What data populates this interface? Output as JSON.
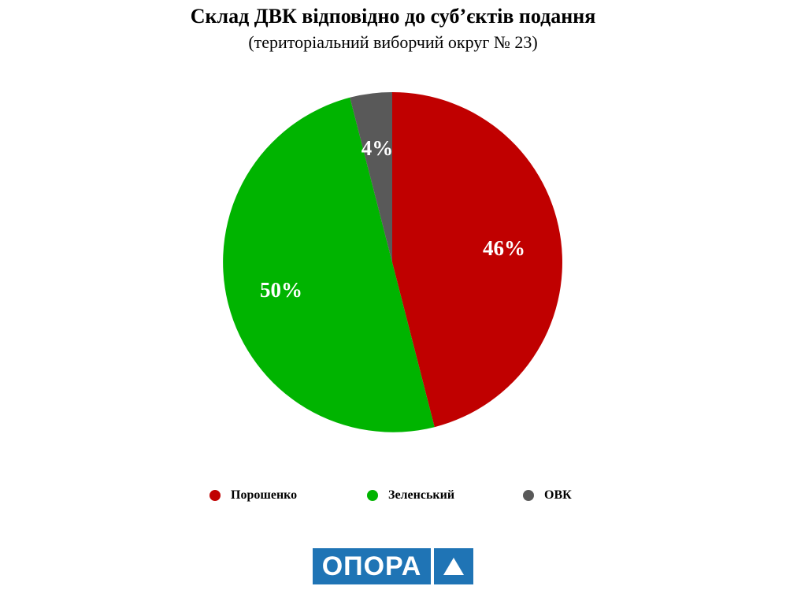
{
  "chart_data": {
    "type": "pie",
    "title": "Склад ДВК відповідно до суб’єктів подання",
    "subtitle": "(територіальний виборчий округ № 23)",
    "slices": [
      {
        "name": "Порошенко",
        "value": 46,
        "label": "46%",
        "color": "#c00000"
      },
      {
        "name": "Зеленський",
        "value": 50,
        "label": "50%",
        "color": "#00b400"
      },
      {
        "name": "ОВК",
        "value": 4,
        "label": "4%",
        "color": "#595959"
      }
    ],
    "start_angle_deg": 0,
    "direction": "clockwise",
    "legend_position": "bottom"
  },
  "logo": {
    "text": "ОПОРА",
    "mark": "triangle-icon",
    "color": "#1f74b5"
  }
}
